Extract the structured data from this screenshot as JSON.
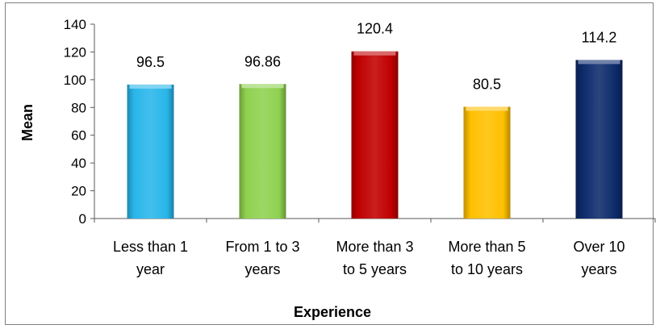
{
  "chart_data": {
    "type": "bar",
    "xlabel": "Experience",
    "ylabel": "Mean",
    "ylim": [
      0,
      140
    ],
    "yticks": [
      "0",
      "20",
      "40",
      "60",
      "80",
      "100",
      "120",
      "140"
    ],
    "grid": false,
    "legend": "none",
    "categories": [
      [
        "Less than 1",
        "year"
      ],
      [
        "From 1 to 3",
        "years"
      ],
      [
        "More than 3",
        "to 5 years"
      ],
      [
        "More than 5",
        "to 10 years"
      ],
      [
        "Over 10",
        "years"
      ]
    ],
    "values": [
      96.5,
      96.86,
      120.4,
      80.5,
      114.2
    ],
    "value_labels": [
      "96.5",
      "96.86",
      "120.4",
      "80.5",
      "114.2"
    ],
    "colors": [
      "#29b6ea",
      "#8fd14f",
      "#c00000",
      "#ffc000",
      "#0d2a6b"
    ]
  }
}
